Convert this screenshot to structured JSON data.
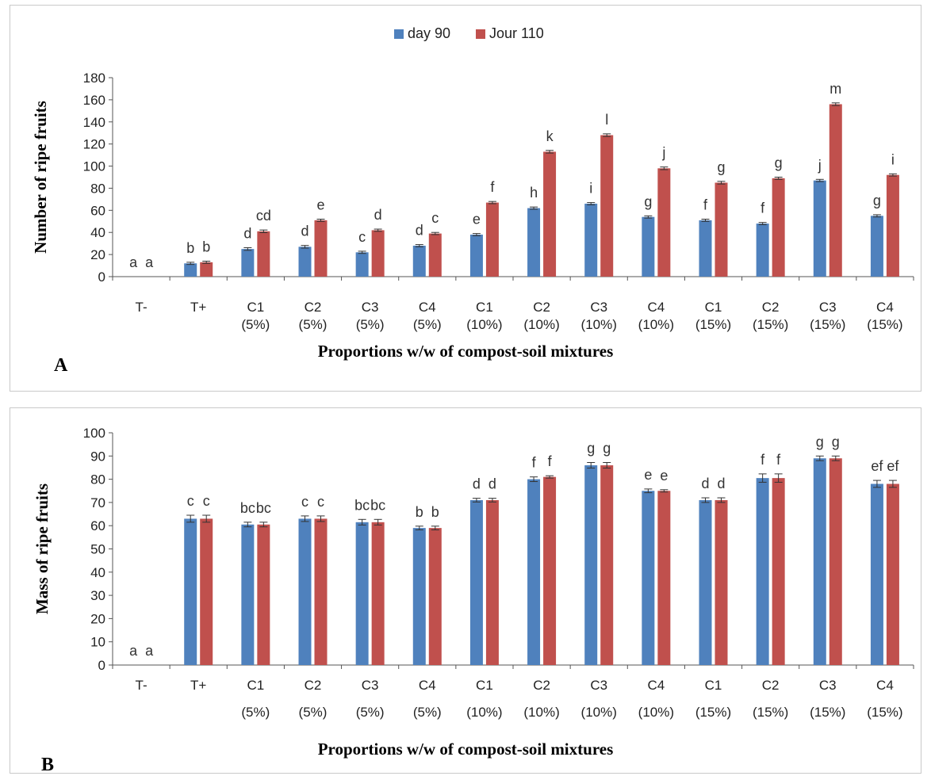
{
  "legend": {
    "items": [
      {
        "label": "day 90",
        "color": "#4f81bd"
      },
      {
        "label": "Jour 110",
        "color": "#c0504d"
      }
    ]
  },
  "chart_data": [
    {
      "type": "bar",
      "panel_label": "A",
      "ylabel": "Number of ripe fruits",
      "xlabel": "Proportions w/w of compost-soil mixtures",
      "ylim": [
        0,
        180
      ],
      "yticks": [
        0,
        20,
        40,
        60,
        80,
        100,
        120,
        140,
        160,
        180
      ],
      "legend_position": "top-center",
      "categories": [
        {
          "line1": "T-",
          "line2": ""
        },
        {
          "line1": "T+",
          "line2": ""
        },
        {
          "line1": "C1",
          "line2": "(5%)"
        },
        {
          "line1": "C2",
          "line2": "(5%)"
        },
        {
          "line1": "C3",
          "line2": "(5%)"
        },
        {
          "line1": "C4",
          "line2": "(5%)"
        },
        {
          "line1": "C1",
          "line2": "(10%)"
        },
        {
          "line1": "C2",
          "line2": "(10%)"
        },
        {
          "line1": "C3",
          "line2": "(10%)"
        },
        {
          "line1": "C4",
          "line2": "(10%)"
        },
        {
          "line1": "C1",
          "line2": "(15%)"
        },
        {
          "line1": "C2",
          "line2": "(15%)"
        },
        {
          "line1": "C3",
          "line2": "(15%)"
        },
        {
          "line1": "C4",
          "line2": "(15%)"
        }
      ],
      "series": [
        {
          "name": "day 90",
          "color": "#4f81bd",
          "values": [
            0,
            12,
            25,
            27,
            22,
            28,
            38,
            62,
            66,
            54,
            51,
            48,
            87,
            55
          ],
          "errors": [
            0,
            1,
            1.2,
            1.2,
            1,
            1,
            1,
            1,
            1,
            1,
            1,
            1,
            1,
            1
          ],
          "labels": [
            "a",
            "b",
            "d",
            "d",
            "c",
            "d",
            "e",
            "h",
            "i",
            "g",
            "f",
            "f",
            "j",
            "g"
          ]
        },
        {
          "name": "Jour 110",
          "color": "#c0504d",
          "values": [
            0,
            13,
            41,
            51,
            42,
            39,
            67,
            113,
            128,
            98,
            85,
            89,
            156,
            92
          ],
          "errors": [
            0,
            1,
            1.2,
            1,
            1,
            1,
            1,
            1.2,
            1.2,
            1.2,
            1.2,
            1,
            1.2,
            1
          ],
          "labels": [
            "a",
            "b",
            "cd",
            "e",
            "d",
            "c",
            "f",
            "k",
            "l",
            "j",
            "g",
            "g",
            "m",
            "i"
          ]
        }
      ]
    },
    {
      "type": "bar",
      "panel_label": "B",
      "ylabel": "Mass of ripe fruits",
      "xlabel": "Proportions w/w of compost-soil mixtures",
      "ylim": [
        0,
        100
      ],
      "yticks": [
        0,
        10,
        20,
        30,
        40,
        50,
        60,
        70,
        80,
        90,
        100
      ],
      "legend_position": "none",
      "categories": [
        {
          "line1": "T-",
          "line2": ""
        },
        {
          "line1": "T+",
          "line2": ""
        },
        {
          "line1": "C1",
          "line2": "(5%)"
        },
        {
          "line1": "C2",
          "line2": "(5%)"
        },
        {
          "line1": "C3",
          "line2": "(5%)"
        },
        {
          "line1": "C4",
          "line2": "(5%)"
        },
        {
          "line1": "C1",
          "line2": "(10%)"
        },
        {
          "line1": "C2",
          "line2": "(10%)"
        },
        {
          "line1": "C3",
          "line2": "(10%)"
        },
        {
          "line1": "C4",
          "line2": "(10%)"
        },
        {
          "line1": "C1",
          "line2": "(15%)"
        },
        {
          "line1": "C2",
          "line2": "(15%)"
        },
        {
          "line1": "C3",
          "line2": "(15%)"
        },
        {
          "line1": "C4",
          "line2": "(15%)"
        }
      ],
      "series": [
        {
          "name": "day 90",
          "color": "#4f81bd",
          "values": [
            0,
            63,
            60.5,
            63,
            61.5,
            59,
            71,
            80,
            86,
            75,
            71,
            80.5,
            89,
            78
          ],
          "errors": [
            0,
            1.5,
            1,
            1.2,
            1.2,
            0.8,
            0.8,
            1,
            1.2,
            0.8,
            1,
            1.8,
            1,
            1.5
          ],
          "labels": [
            "a",
            "c",
            "bc",
            "c",
            "bc",
            "b",
            "d",
            "f",
            "g",
            "e",
            "d",
            "f",
            "g",
            "ef"
          ]
        },
        {
          "name": "Jour 110",
          "color": "#c0504d",
          "values": [
            0,
            63,
            60.5,
            63,
            61.5,
            59,
            71,
            81,
            86,
            75,
            71,
            80.5,
            89,
            78
          ],
          "errors": [
            0,
            1.5,
            1,
            1.2,
            1.2,
            0.8,
            0.8,
            0.5,
            1.2,
            0.5,
            1,
            1.8,
            1,
            1.5
          ],
          "labels": [
            "a",
            "c",
            "bc",
            "c",
            "bc",
            "b",
            "d",
            "f",
            "g",
            "e",
            "d",
            "f",
            "g",
            "ef"
          ]
        }
      ]
    }
  ]
}
